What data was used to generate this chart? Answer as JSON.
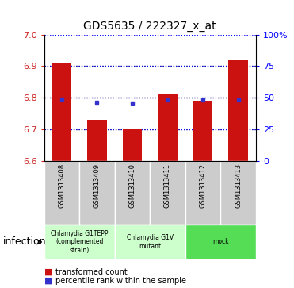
{
  "title": "GDS5635 / 222327_x_at",
  "samples": [
    "GSM1313408",
    "GSM1313409",
    "GSM1313410",
    "GSM1313411",
    "GSM1313412",
    "GSM1313413"
  ],
  "red_bar_tops": [
    6.912,
    6.73,
    6.7,
    6.81,
    6.792,
    6.922
  ],
  "blue_square_y": [
    6.796,
    6.787,
    6.783,
    6.793,
    6.793,
    6.793
  ],
  "bar_bottom": 6.6,
  "ylim": [
    6.6,
    7.0
  ],
  "yticks_left": [
    6.6,
    6.7,
    6.8,
    6.9,
    7.0
  ],
  "yticks_right_vals": [
    0,
    25,
    50,
    75,
    100
  ],
  "yticks_right_labels": [
    "0",
    "25",
    "50",
    "75",
    "100%"
  ],
  "bar_color": "#cc1111",
  "blue_color": "#3333cc",
  "group_colors": [
    "#ccffcc",
    "#ccffcc",
    "#55dd55"
  ],
  "group_labels": [
    "Chlamydia G1TEPP\n(complemented\nstrain)",
    "Chlamydia G1V\nmutant",
    "mock"
  ],
  "group_ranges": [
    [
      0,
      2
    ],
    [
      2,
      4
    ],
    [
      4,
      6
    ]
  ],
  "factor_label": "infection",
  "legend_red": "transformed count",
  "legend_blue": "percentile rank within the sample",
  "bar_width": 0.55,
  "dotted_black": [
    6.7,
    6.8,
    6.9
  ],
  "dotted_blue_pct": [
    25,
    50,
    75,
    100
  ],
  "sample_box_color": "#cccccc",
  "bg_color": "#ffffff"
}
